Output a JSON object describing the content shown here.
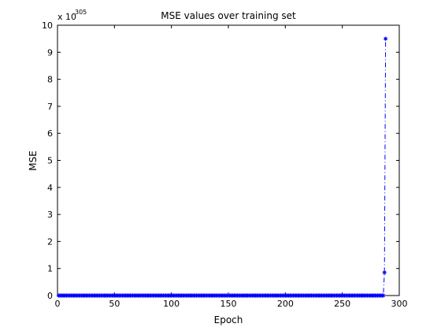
{
  "chart_data": {
    "type": "line",
    "title": "MSE values over training set",
    "xlabel": "Epoch",
    "ylabel": "MSE",
    "y_multiplier_base": "x 10",
    "y_multiplier_exp": "305",
    "xlim": [
      0,
      300
    ],
    "ylim": [
      0,
      10
    ],
    "xticks": [
      0,
      50,
      100,
      150,
      200,
      250,
      300
    ],
    "yticks": [
      0,
      1,
      2,
      3,
      4,
      5,
      6,
      7,
      8,
      9,
      10
    ],
    "grid": false,
    "line_style": "dash-dot",
    "marker": "*",
    "color": "#0000ff",
    "series": [
      {
        "values_note_scale": "values in units of 1e305",
        "flat_start_epoch": 1,
        "flat_end_epoch": 286,
        "flat_value": 0,
        "x_tail": [
          287,
          288
        ],
        "y_tail": [
          0.85,
          9.5
        ]
      }
    ]
  }
}
